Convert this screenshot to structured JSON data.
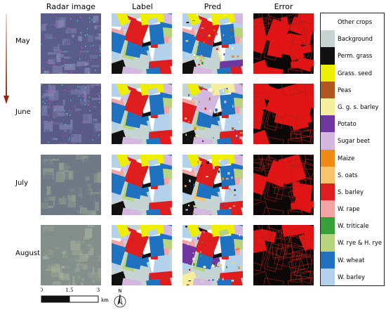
{
  "columns": [
    "Radar image",
    "Label",
    "Pred",
    "Error"
  ],
  "rows": [
    "May",
    "June",
    "July",
    "August"
  ],
  "legend": [
    {
      "label": "Other crops",
      "color": "#ffffff"
    },
    {
      "label": "Background",
      "color": "#c6d3d3"
    },
    {
      "label": "Perm. grass",
      "color": "#111111"
    },
    {
      "label": "Grass. seed",
      "color": "#eeee00"
    },
    {
      "label": "Peas",
      "color": "#b0561f"
    },
    {
      "label": "G. g. s. barley",
      "color": "#f5ee9c"
    },
    {
      "label": "Potato",
      "color": "#6f38a0"
    },
    {
      "label": "Sugar beet",
      "color": "#d4b8df"
    },
    {
      "label": "Maize",
      "color": "#f08a14"
    },
    {
      "label": "S. oats",
      "color": "#f9c36c"
    },
    {
      "label": "S. barley",
      "color": "#de1e1e"
    },
    {
      "label": "W. rape",
      "color": "#f2a3a3"
    },
    {
      "label": "W. triticale",
      "color": "#35a038"
    },
    {
      "label": "W. rye & H. rye",
      "color": "#b6d47e"
    },
    {
      "label": "W. wheat",
      "color": "#1f72c0"
    },
    {
      "label": "W. barley",
      "color": "#b4d1eb"
    }
  ],
  "scale": {
    "ticks": [
      "0",
      "1.5",
      "3"
    ],
    "unit": "km"
  },
  "north": "N"
}
